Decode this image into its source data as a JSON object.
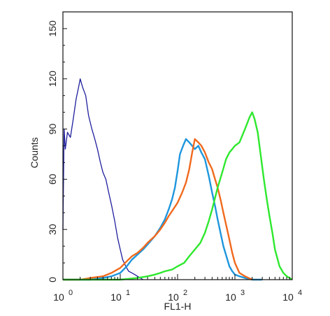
{
  "chart_data": {
    "type": "line",
    "xlabel": "FL1-H",
    "ylabel": "Counts",
    "x_scale": "log",
    "xlim": [
      1,
      10000
    ],
    "ylim": [
      0,
      160
    ],
    "x_ticks": [
      {
        "value": 1,
        "base": "10",
        "exp": "0"
      },
      {
        "value": 10,
        "base": "10",
        "exp": "1"
      },
      {
        "value": 100,
        "base": "10",
        "exp": "2"
      },
      {
        "value": 1000,
        "base": "10",
        "exp": "3"
      },
      {
        "value": 10000,
        "base": "10",
        "exp": "4"
      }
    ],
    "y_ticks": [
      0,
      30,
      60,
      90,
      120,
      150
    ],
    "grid": false,
    "series": [
      {
        "color": "#1f1f9e",
        "x": [
          1,
          1.05,
          1.1,
          1.2,
          1.35,
          1.5,
          1.7,
          1.9,
          2.0,
          2.2,
          2.5,
          2.8,
          3.2,
          3.6,
          4.0,
          4.5,
          5.0,
          5.6,
          6.3,
          7.1,
          8.0,
          9.0,
          10,
          11,
          12.5,
          14,
          16,
          18,
          20,
          25
        ],
        "y": [
          30,
          90,
          78,
          88,
          85,
          95,
          108,
          116,
          120,
          115,
          110,
          98,
          90,
          84,
          78,
          70,
          64,
          60,
          52,
          44,
          35,
          25,
          18,
          12,
          8,
          5,
          4,
          3,
          2,
          0
        ]
      },
      {
        "color": "#1e96dc",
        "x": [
          1,
          3,
          5,
          7,
          10,
          13,
          16,
          20,
          25,
          30,
          40,
          50,
          60,
          70,
          80,
          90,
          100,
          110,
          125,
          140,
          160,
          180,
          200,
          230,
          260,
          300,
          350,
          400,
          450,
          500,
          560,
          630,
          710,
          800,
          900,
          1000,
          1200,
          1500,
          2000,
          3000
        ],
        "y": [
          0,
          0,
          1,
          2,
          4,
          8,
          12,
          15,
          18,
          21,
          26,
          31,
          36,
          42,
          48,
          55,
          65,
          75,
          80,
          84,
          82,
          80,
          78,
          80,
          76,
          72,
          62,
          52,
          44,
          36,
          28,
          20,
          14,
          8,
          5,
          3,
          2,
          1,
          0,
          0
        ]
      },
      {
        "color": "#f06a1e",
        "x": [
          1,
          2,
          3,
          5,
          7,
          10,
          13,
          16,
          20,
          25,
          30,
          40,
          50,
          60,
          70,
          80,
          100,
          120,
          140,
          160,
          180,
          200,
          230,
          260,
          300,
          350,
          400,
          450,
          500,
          560,
          630,
          710,
          800,
          900,
          1000,
          1200,
          1500,
          2000
        ],
        "y": [
          0,
          0,
          1,
          2,
          4,
          7,
          11,
          14,
          16,
          19,
          22,
          26,
          30,
          34,
          38,
          41,
          46,
          52,
          58,
          66,
          76,
          84,
          82,
          80,
          76,
          70,
          66,
          60,
          55,
          48,
          40,
          32,
          24,
          16,
          10,
          4,
          2,
          0
        ]
      },
      {
        "color": "#2ee82e",
        "x": [
          1,
          10,
          20,
          30,
          40,
          50,
          60,
          80,
          100,
          130,
          160,
          200,
          250,
          300,
          350,
          400,
          500,
          600,
          700,
          800,
          900,
          1000,
          1200,
          1500,
          1800,
          2000,
          2200,
          2500,
          2800,
          3200,
          3600,
          4000,
          4500,
          5000,
          6000,
          7000,
          8000,
          9000,
          10000
        ],
        "y": [
          0,
          0,
          1,
          2,
          3,
          4,
          5,
          6,
          8,
          10,
          14,
          18,
          22,
          28,
          35,
          42,
          55,
          64,
          72,
          76,
          78,
          80,
          82,
          90,
          97,
          100,
          96,
          88,
          75,
          60,
          48,
          38,
          28,
          18,
          8,
          4,
          2,
          1,
          0
        ]
      }
    ]
  }
}
